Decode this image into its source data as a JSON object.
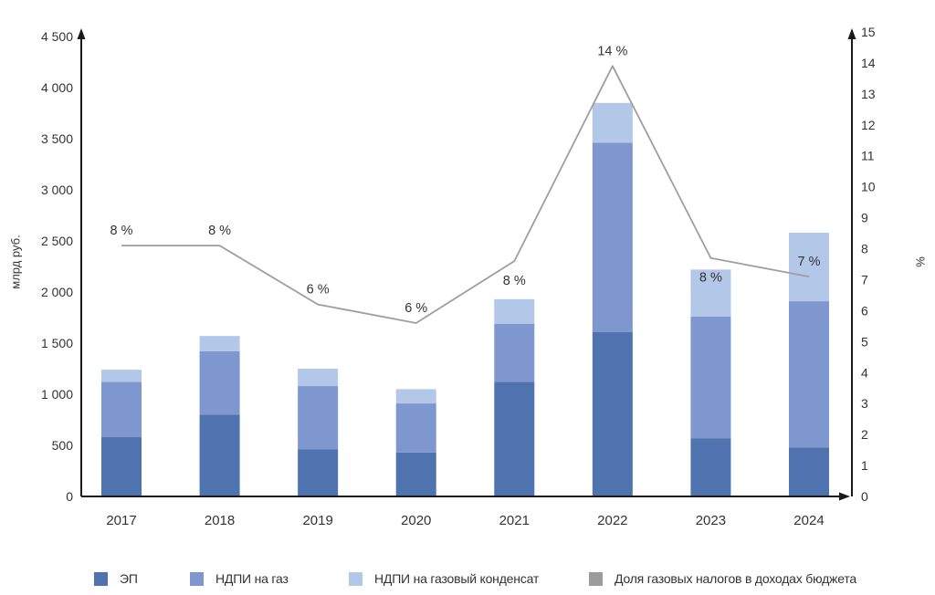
{
  "chart_data": {
    "type": "bar",
    "subtype": "stacked-bars-with-percentage-line",
    "title": "",
    "categories": [
      "2017",
      "2018",
      "2019",
      "2020",
      "2021",
      "2022",
      "2023",
      "2024"
    ],
    "series": [
      {
        "name": "ЭП",
        "color": "#4E73AE",
        "values": [
          580,
          800,
          460,
          430,
          1120,
          1610,
          570,
          480
        ]
      },
      {
        "name": "НДПИ на газ",
        "color": "#7E97CE",
        "values": [
          540,
          620,
          620,
          480,
          570,
          1850,
          1190,
          1430
        ]
      },
      {
        "name": "НДПИ на газовый конденсат",
        "color": "#B3C7E8",
        "values": [
          120,
          150,
          170,
          140,
          240,
          390,
          460,
          670
        ]
      }
    ],
    "stack_totals": [
      1240,
      1570,
      1250,
      1050,
      1930,
      3850,
      2220,
      2580
    ],
    "line": {
      "name": "Доля газовых налогов в доходах бюджета",
      "color": "#9E9E9E",
      "values": [
        8.1,
        8.1,
        6.2,
        5.6,
        7.6,
        13.9,
        7.7,
        7.1
      ],
      "point_labels": [
        "8 %",
        "8 %",
        "6 %",
        "6 %",
        "8 %",
        "14 %",
        "8 %",
        "7 %"
      ],
      "label_placement": [
        "above",
        "above",
        "above",
        "above",
        "below",
        "above",
        "below",
        "above"
      ]
    },
    "left_axis": {
      "title": "млрд руб.",
      "min": 0,
      "max": 4500,
      "step": 500,
      "tick_labels": [
        "0",
        "500",
        "1 000",
        "1 500",
        "2 000",
        "2 500",
        "3 000",
        "3 500",
        "4 000",
        "4 500"
      ]
    },
    "right_axis": {
      "title": "%",
      "min": 0,
      "max": 15,
      "step": 1,
      "tick_labels": [
        "0",
        "1",
        "2",
        "3",
        "4",
        "5",
        "6",
        "7",
        "8",
        "9",
        "10",
        "11",
        "12",
        "13",
        "14",
        "15"
      ]
    },
    "legend": [
      {
        "label": "ЭП",
        "color": "#4E73AE"
      },
      {
        "label": "НДПИ на газ",
        "color": "#7E97CE"
      },
      {
        "label": "НДПИ на газовый конденсат",
        "color": "#B3C7E8"
      },
      {
        "label": "Доля газовых налогов в доходах бюджета",
        "color": "#9C9C9C"
      }
    ],
    "layout_hints": {
      "grid": false,
      "legend_position": "bottom",
      "axis_color": "#1a1a1a"
    }
  }
}
